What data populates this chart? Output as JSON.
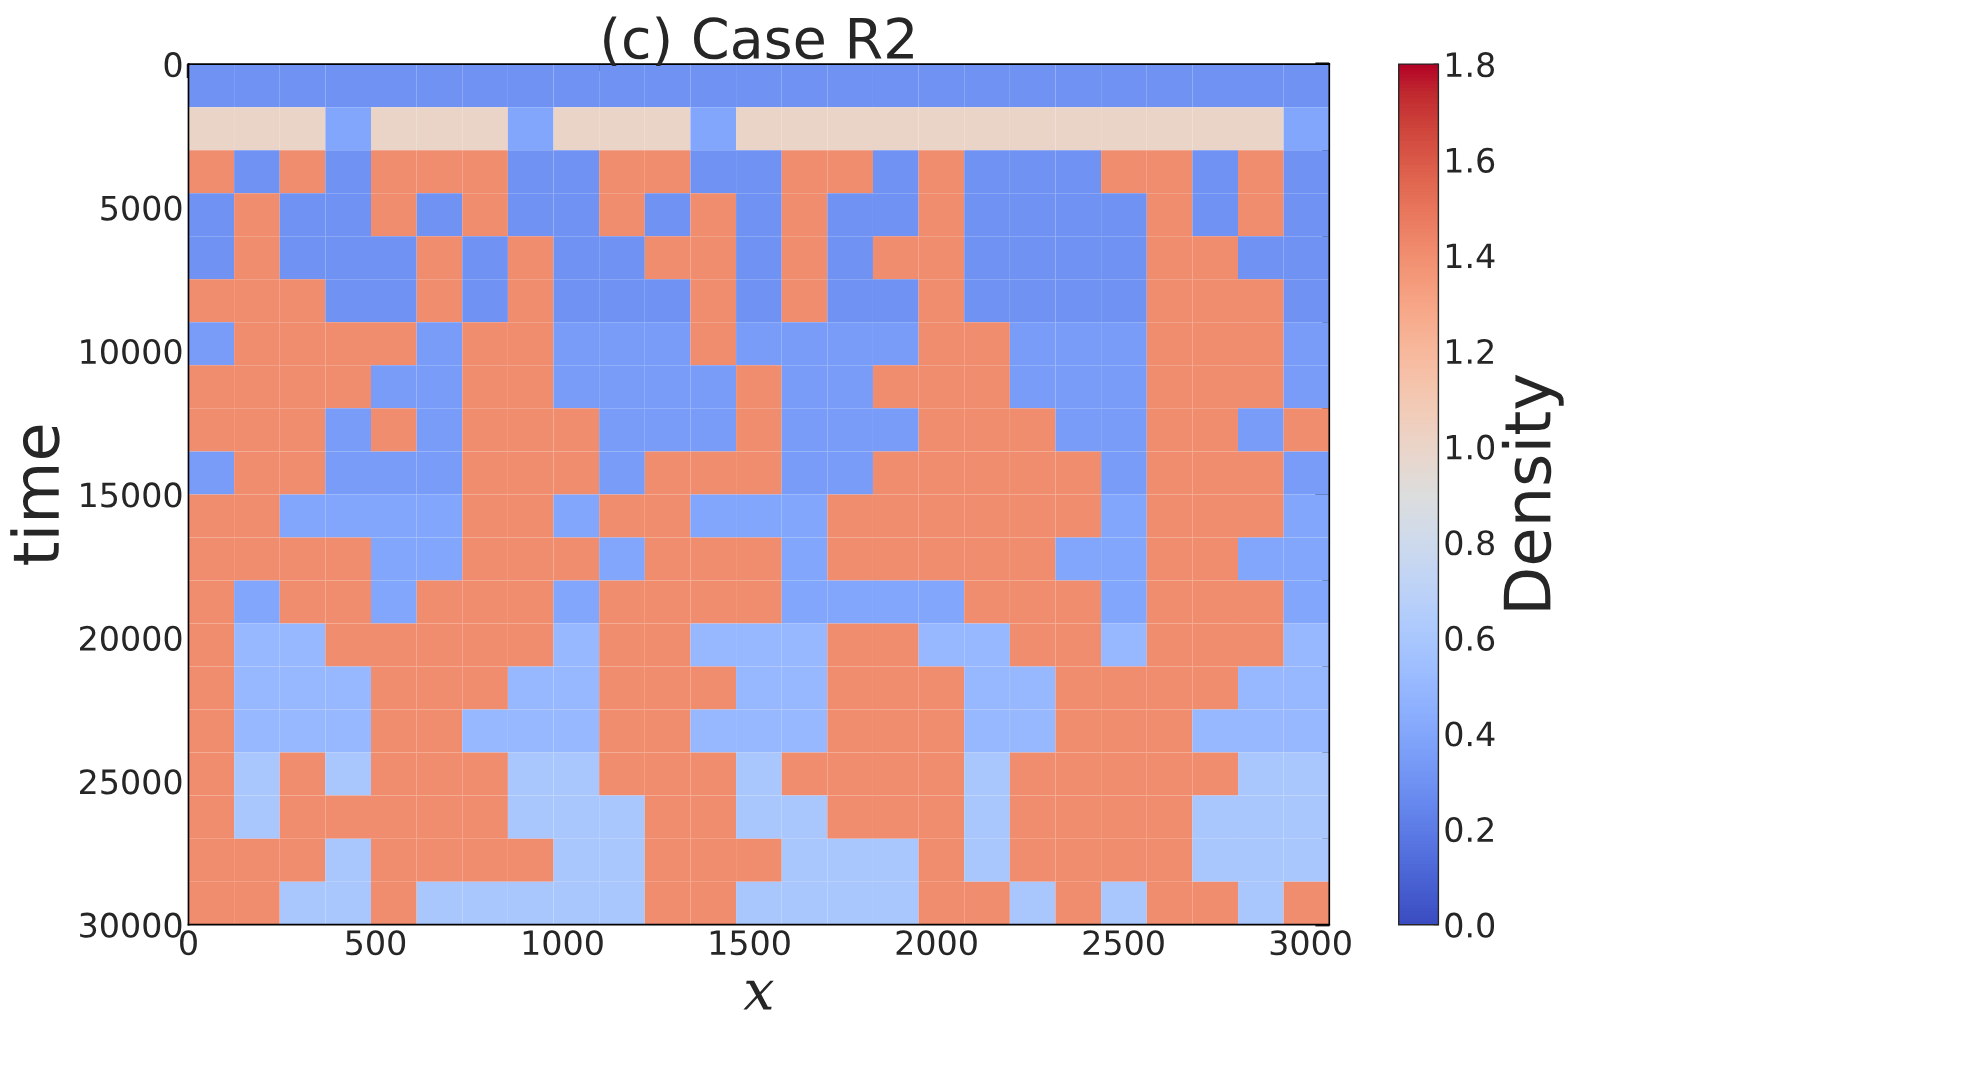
{
  "chart_data": {
    "type": "heatmap",
    "title": "(c) Case R2",
    "xlabel": "x",
    "ylabel": "time",
    "clabel": "Density",
    "xlim": [
      0,
      3050
    ],
    "ylim": [
      30000,
      0
    ],
    "xticks": [
      0,
      500,
      1000,
      1500,
      2000,
      2500,
      3000
    ],
    "yticks": [
      0,
      5000,
      10000,
      15000,
      20000,
      25000,
      30000
    ],
    "clim": [
      0,
      1.8
    ],
    "cticks": [
      {
        "value": 0,
        "label": "0.0"
      },
      {
        "value": 0.2,
        "label": "0.2"
      },
      {
        "value": 0.4,
        "label": "0.4"
      },
      {
        "value": 0.6,
        "label": "0.6"
      },
      {
        "value": 0.8,
        "label": "0.8"
      },
      {
        "value": 1.0,
        "label": "1.0"
      },
      {
        "value": 1.2,
        "label": "1.2"
      },
      {
        "value": 1.4,
        "label": "1.4"
      },
      {
        "value": 1.6,
        "label": "1.6"
      },
      {
        "value": 1.8,
        "label": "1.8"
      }
    ],
    "cells": [
      [
        0.3,
        0.3,
        0.3,
        0.3,
        0.3,
        0.3,
        0.3,
        0.3,
        0.3,
        0.3,
        0.3,
        0.3,
        0.3,
        0.3,
        0.3,
        0.3,
        0.3,
        0.3,
        0.3,
        0.3,
        0.3,
        0.3,
        0.3,
        0.3,
        0.3
      ],
      [
        1.0,
        1.0,
        1.0,
        0.4,
        1.0,
        1.0,
        1.0,
        0.4,
        1.0,
        1.0,
        1.0,
        0.4,
        1.0,
        1.0,
        1.0,
        1.0,
        1.0,
        1.0,
        1.0,
        1.0,
        1.0,
        1.0,
        1.0,
        1.0,
        0.4
      ],
      [
        1.4,
        0.3,
        1.4,
        0.3,
        1.4,
        1.4,
        1.4,
        0.3,
        0.3,
        1.4,
        1.4,
        0.3,
        0.3,
        1.4,
        1.4,
        0.3,
        1.4,
        0.3,
        0.3,
        0.3,
        1.4,
        1.4,
        0.3,
        1.4,
        0.3
      ],
      [
        0.3,
        1.4,
        0.3,
        0.3,
        1.4,
        0.3,
        1.4,
        0.3,
        0.3,
        1.4,
        0.3,
        1.4,
        0.3,
        1.4,
        0.3,
        0.3,
        1.4,
        0.3,
        0.3,
        0.3,
        0.3,
        1.4,
        0.3,
        1.4,
        0.3
      ],
      [
        0.3,
        1.4,
        0.3,
        0.3,
        0.3,
        1.4,
        0.3,
        1.4,
        0.3,
        0.3,
        1.4,
        1.4,
        0.3,
        1.4,
        0.3,
        1.4,
        1.4,
        0.3,
        0.3,
        0.3,
        0.3,
        1.4,
        1.4,
        0.3,
        0.3
      ],
      [
        1.4,
        1.4,
        1.4,
        0.3,
        0.3,
        1.4,
        0.3,
        1.4,
        0.3,
        0.3,
        0.3,
        1.4,
        0.3,
        1.4,
        0.3,
        0.3,
        1.4,
        0.3,
        0.3,
        0.3,
        0.3,
        1.4,
        1.4,
        1.4,
        0.3
      ],
      [
        0.35,
        1.4,
        1.4,
        1.4,
        1.4,
        0.35,
        1.4,
        1.4,
        0.35,
        0.35,
        0.35,
        1.4,
        0.35,
        0.35,
        0.35,
        0.35,
        1.4,
        1.4,
        0.35,
        0.35,
        0.35,
        1.4,
        1.4,
        1.4,
        0.35
      ],
      [
        1.4,
        1.4,
        1.4,
        1.4,
        0.35,
        0.35,
        1.4,
        1.4,
        0.35,
        0.35,
        0.35,
        0.35,
        1.4,
        0.35,
        0.35,
        1.4,
        1.4,
        1.4,
        0.35,
        0.35,
        0.35,
        1.4,
        1.4,
        1.4,
        0.35
      ],
      [
        1.4,
        1.4,
        1.4,
        0.35,
        1.4,
        0.35,
        1.4,
        1.4,
        1.4,
        0.35,
        0.35,
        0.35,
        1.4,
        0.35,
        0.35,
        0.35,
        1.4,
        1.4,
        1.4,
        0.35,
        0.35,
        1.4,
        1.4,
        0.35,
        1.4
      ],
      [
        0.35,
        1.4,
        1.4,
        0.35,
        0.35,
        0.35,
        1.4,
        1.4,
        1.4,
        0.35,
        1.4,
        1.4,
        1.4,
        0.35,
        0.35,
        1.4,
        1.4,
        1.4,
        1.4,
        1.4,
        0.35,
        1.4,
        1.4,
        1.4,
        0.35
      ],
      [
        1.4,
        1.4,
        0.4,
        0.4,
        0.4,
        0.4,
        1.4,
        1.4,
        0.4,
        1.4,
        1.4,
        0.4,
        0.4,
        0.4,
        1.4,
        1.4,
        1.4,
        1.4,
        1.4,
        1.4,
        0.4,
        1.4,
        1.4,
        1.4,
        0.4
      ],
      [
        1.4,
        1.4,
        1.4,
        1.4,
        0.4,
        0.4,
        1.4,
        1.4,
        1.4,
        0.4,
        1.4,
        1.4,
        1.4,
        0.4,
        1.4,
        1.4,
        1.4,
        1.4,
        1.4,
        0.4,
        0.4,
        1.4,
        1.4,
        0.4,
        0.4
      ],
      [
        1.4,
        0.4,
        1.4,
        1.4,
        0.4,
        1.4,
        1.4,
        1.4,
        0.4,
        1.4,
        1.4,
        1.4,
        1.4,
        0.4,
        0.4,
        0.4,
        0.4,
        1.4,
        1.4,
        1.4,
        0.4,
        1.4,
        1.4,
        1.4,
        0.4
      ],
      [
        1.4,
        0.5,
        0.5,
        1.4,
        1.4,
        1.4,
        1.4,
        1.4,
        0.5,
        1.4,
        1.4,
        0.5,
        0.5,
        0.5,
        1.4,
        1.4,
        0.5,
        0.5,
        1.4,
        1.4,
        0.5,
        1.4,
        1.4,
        1.4,
        0.5
      ],
      [
        1.4,
        0.5,
        0.5,
        0.5,
        1.4,
        1.4,
        1.4,
        0.5,
        0.5,
        1.4,
        1.4,
        1.4,
        0.5,
        0.5,
        1.4,
        1.4,
        1.4,
        0.5,
        0.5,
        1.4,
        1.4,
        1.4,
        1.4,
        0.5,
        0.5
      ],
      [
        1.4,
        0.5,
        0.5,
        0.5,
        1.4,
        1.4,
        0.5,
        0.5,
        0.5,
        1.4,
        1.4,
        0.5,
        0.5,
        0.5,
        1.4,
        1.4,
        1.4,
        0.5,
        0.5,
        1.4,
        1.4,
        1.4,
        0.5,
        0.5,
        0.5
      ],
      [
        1.4,
        0.6,
        1.4,
        0.6,
        1.4,
        1.4,
        1.4,
        0.6,
        0.6,
        1.4,
        1.4,
        1.4,
        0.6,
        1.4,
        1.4,
        1.4,
        1.4,
        0.6,
        1.4,
        1.4,
        1.4,
        1.4,
        1.4,
        0.6,
        0.6
      ],
      [
        1.4,
        0.6,
        1.4,
        1.4,
        1.4,
        1.4,
        1.4,
        0.6,
        0.6,
        0.6,
        1.4,
        1.4,
        0.6,
        0.6,
        1.4,
        1.4,
        1.4,
        0.6,
        1.4,
        1.4,
        1.4,
        1.4,
        0.6,
        0.6,
        0.6
      ],
      [
        1.4,
        1.4,
        1.4,
        0.6,
        1.4,
        1.4,
        1.4,
        1.4,
        0.6,
        0.6,
        1.4,
        1.4,
        1.4,
        0.6,
        0.6,
        0.6,
        1.4,
        0.6,
        1.4,
        1.4,
        1.4,
        1.4,
        0.6,
        0.6,
        0.6
      ],
      [
        1.4,
        1.4,
        0.6,
        0.6,
        1.4,
        0.6,
        0.6,
        0.6,
        0.6,
        0.6,
        1.4,
        1.4,
        0.6,
        0.6,
        0.6,
        0.6,
        1.4,
        1.4,
        0.6,
        1.4,
        0.6,
        1.4,
        1.4,
        0.6,
        1.4
      ]
    ]
  }
}
